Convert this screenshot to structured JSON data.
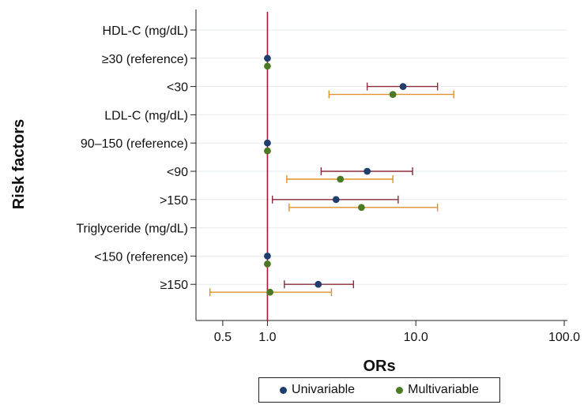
{
  "chart_data": {
    "type": "forest",
    "ylabel": "Risk factors",
    "xlabel": "ORs",
    "xscale": "log",
    "xlim": [
      0.33,
      105
    ],
    "xticks": [
      {
        "value": 0.5,
        "label": "0.5"
      },
      {
        "value": 1.0,
        "label": "1.0"
      },
      {
        "value": 10.0,
        "label": "10.0"
      },
      {
        "value": 100.0,
        "label": "100.0"
      }
    ],
    "reference_line": 1.0,
    "rows": [
      {
        "label": "HDL-C (mg/dL)",
        "header": true
      },
      {
        "label": "≥30 (reference)",
        "header": false,
        "uni": {
          "or": 1.0
        },
        "multi": {
          "or": 1.0
        }
      },
      {
        "label": "<30",
        "header": false,
        "uni": {
          "or": 8.2,
          "lo": 4.7,
          "hi": 14.0
        },
        "multi": {
          "or": 7.0,
          "lo": 2.6,
          "hi": 18.0
        }
      },
      {
        "label": "LDL-C (mg/dL)",
        "header": true
      },
      {
        "label": "90–150 (reference)",
        "header": false,
        "uni": {
          "or": 1.0
        },
        "multi": {
          "or": 1.0
        }
      },
      {
        "label": "<90",
        "header": false,
        "uni": {
          "or": 4.7,
          "lo": 2.3,
          "hi": 9.5
        },
        "multi": {
          "or": 3.1,
          "lo": 1.35,
          "hi": 7.0
        }
      },
      {
        "label": ">150",
        "header": false,
        "uni": {
          "or": 2.9,
          "lo": 1.08,
          "hi": 7.6
        },
        "multi": {
          "or": 4.3,
          "lo": 1.4,
          "hi": 14.0
        }
      },
      {
        "label": "Triglyceride (mg/dL)",
        "header": true
      },
      {
        "label": "<150 (reference)",
        "header": false,
        "uni": {
          "or": 1.0
        },
        "multi": {
          "or": 1.0
        }
      },
      {
        "label": "≥150",
        "header": false,
        "uni": {
          "or": 2.2,
          "lo": 1.3,
          "hi": 3.8
        },
        "multi": {
          "or": 1.04,
          "lo": 0.41,
          "hi": 2.7
        }
      }
    ],
    "series": [
      {
        "key": "uni",
        "name": "Univariable",
        "point_color": "#1f3e6e",
        "ci_color": "#8b2a3a"
      },
      {
        "key": "multi",
        "name": "Multivariable",
        "point_color": "#4a7a25",
        "ci_color": "#e0902a"
      }
    ],
    "grid": true,
    "legend_position": "bottom"
  }
}
